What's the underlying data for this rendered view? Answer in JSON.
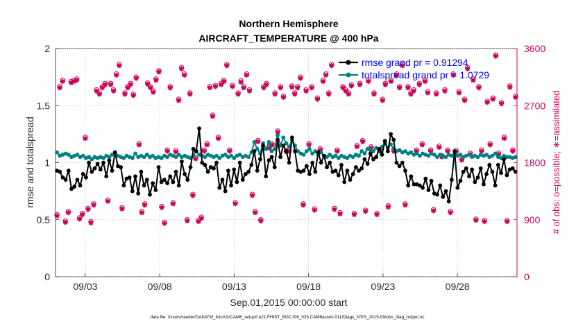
{
  "chart_data": {
    "type": "line",
    "title": "Northern Hemisphere",
    "subtitle": "AIRCRAFT_TEMPERATURE @ 400 hPa",
    "xlabel": "Sep.01,2015 00:00:00 start",
    "ylabel_left": "rmse and totalspread",
    "ylabel_right": "# of obs: o=possible; ∗=assimilated",
    "footer": "data file: /Users/raeder/DAI/ATM_forcXX/CAM6_setup/f.e21.FHIST_BGC.f09_025.CAM6assim.011/Diags_NTrS_2015-09/obs_diag_output.nc",
    "x_range_days": [
      0,
      31
    ],
    "ylim_left": [
      0,
      2
    ],
    "ylim_right": [
      0,
      3600
    ],
    "left_ticks": [
      "0",
      "0.5",
      "1",
      "1.5",
      "2"
    ],
    "right_ticks": [
      "0",
      "900",
      "1800",
      "2700",
      "3600"
    ],
    "x_ticks": [
      {
        "day": 2,
        "label": "09/03"
      },
      {
        "day": 7,
        "label": "09/08"
      },
      {
        "day": 12,
        "label": "09/13"
      },
      {
        "day": 17,
        "label": "09/18"
      },
      {
        "day": 22,
        "label": "09/23"
      },
      {
        "day": 27,
        "label": "09/28"
      }
    ],
    "legend": {
      "placement": "top-right",
      "entries": [
        {
          "label": "rmse grand pr = 0.91294",
          "color": "#000000"
        },
        {
          "label": "totalspread grand pr = 1.0729",
          "color": "#008080"
        }
      ]
    },
    "series": [
      {
        "name": "rmse",
        "color": "#000000",
        "axis": "left",
        "values": [
          0.93,
          0.92,
          0.87,
          0.85,
          0.93,
          0.77,
          0.79,
          0.85,
          0.8,
          0.9,
          0.87,
          1.0,
          0.92,
          0.95,
          0.99,
          0.94,
          1.0,
          0.88,
          1.02,
          0.93,
          1.09,
          0.97,
          0.96,
          0.8,
          0.86,
          0.87,
          0.75,
          0.88,
          0.73,
          0.92,
          0.8,
          0.85,
          0.72,
          0.82,
          0.76,
          0.96,
          0.83,
          0.85,
          0.82,
          0.88,
          0.83,
          0.92,
          0.8,
          1.01,
          0.9,
          0.85,
          0.96,
          1.12,
          1.1,
          1.3,
          1.0,
          0.98,
          0.92,
          0.96,
          0.95,
          1.0,
          0.78,
          0.85,
          0.75,
          0.93,
          0.8,
          0.94,
          0.83,
          1.0,
          0.85,
          0.9,
          0.92,
          0.98,
          1.1,
          0.93,
          1.03,
          1.15,
          0.88,
          1.02,
          1.05,
          0.96,
          1.2,
          1.05,
          1.15,
          1.1,
          1.0,
          1.22,
          1.1,
          0.93,
          0.92,
          0.93,
          0.97,
          0.9,
          1.0,
          0.92,
          1.09,
          1.0,
          1.06,
          0.96,
          1.0,
          0.92,
          0.93,
          0.89,
          0.98,
          0.83,
          0.93,
          0.85,
          0.9,
          0.96,
          0.93,
          0.95,
          1.03,
          0.99,
          1.08,
          1.03,
          1.05,
          1.12,
          1.07,
          1.19,
          1.1,
          1.25,
          1.2,
          1.0,
          0.97,
          1.0,
          0.93,
          0.8,
          0.88,
          0.81,
          0.81,
          0.8,
          0.78,
          0.86,
          0.76,
          0.84,
          0.73,
          0.72,
          0.8,
          0.7,
          0.75,
          0.66,
          0.85,
          1.1,
          0.78,
          0.84,
          0.92,
          0.95,
          0.88,
          0.94,
          0.83,
          0.87,
          0.95,
          0.81,
          0.9,
          0.98,
          0.92,
          0.8,
          0.98,
          0.91,
          1.03,
          0.89,
          0.94,
          0.95,
          0.92
        ]
      },
      {
        "name": "totalspread",
        "color": "#008080",
        "axis": "left",
        "values": [
          1.09,
          1.06,
          1.07,
          1.08,
          1.07,
          1.05,
          1.06,
          1.07,
          1.05,
          1.06,
          1.04,
          1.05,
          1.03,
          1.05,
          1.04,
          1.05,
          1.04,
          1.06,
          1.05,
          1.07,
          1.08,
          1.06,
          1.05,
          1.04,
          1.06,
          1.05,
          1.04,
          1.08,
          1.05,
          1.06,
          1.05,
          1.07,
          1.05,
          1.06,
          1.04,
          1.05,
          1.04,
          1.06,
          1.05,
          1.07,
          1.06,
          1.05,
          1.07,
          1.05,
          1.06,
          1.05,
          1.04,
          1.06,
          1.1,
          1.07,
          1.06,
          1.05,
          1.07,
          1.06,
          1.05,
          1.06,
          1.04,
          1.06,
          1.07,
          1.05,
          1.06,
          1.04,
          1.06,
          1.07,
          1.05,
          1.06,
          1.05,
          1.09,
          1.18,
          1.12,
          1.08,
          1.17,
          1.12,
          1.18,
          1.1,
          1.12,
          1.24,
          1.15,
          1.22,
          1.17,
          1.14,
          1.2,
          1.15,
          1.1,
          1.08,
          1.07,
          1.1,
          1.12,
          1.08,
          1.1,
          1.07,
          1.09,
          1.06,
          1.05,
          1.07,
          1.05,
          1.06,
          1.04,
          1.06,
          1.05,
          1.04,
          1.06,
          1.05,
          1.07,
          1.06,
          1.1,
          1.08,
          1.12,
          1.11,
          1.1,
          1.13,
          1.11,
          1.14,
          1.17,
          1.13,
          1.16,
          1.12,
          1.1,
          1.11,
          1.09,
          1.1,
          1.08,
          1.09,
          1.07,
          1.08,
          1.06,
          1.08,
          1.07,
          1.06,
          1.08,
          1.07,
          1.05,
          1.07,
          1.06,
          1.05,
          1.07,
          1.06,
          1.08,
          1.06,
          1.07,
          1.05,
          1.06,
          1.07,
          1.05,
          1.06,
          1.05,
          1.07,
          1.06,
          1.07,
          1.05,
          1.06,
          1.08,
          1.05,
          1.04,
          1.06,
          1.05,
          1.05,
          1.04,
          1.05
        ]
      },
      {
        "name": "nobs_possible",
        "color": "#cc0055",
        "axis": "right",
        "marker": "o",
        "values": [
          980,
          3000,
          3100,
          880,
          1030,
          3080,
          3100,
          3120,
          930,
          1000,
          2200,
          1080,
          870,
          1150,
          2950,
          2900,
          3000,
          3050,
          1210,
          3050,
          2950,
          3200,
          3350,
          1090,
          2900,
          3000,
          3050,
          2880,
          3150,
          2100,
          1030,
          1150,
          3060,
          3000,
          2930,
          3120,
          3250,
          1110,
          860,
          2000,
          3000,
          1170,
          1990,
          2800,
          3300,
          3200,
          900,
          2900,
          1300,
          1880,
          890,
          940,
          2000,
          2100,
          3000,
          2550,
          3020,
          2200,
          3050,
          3100,
          3350,
          2000,
          3020,
          1170,
          2900,
          3090,
          3000,
          3200,
          2950,
          1300,
          1030,
          2150,
          900,
          3000,
          3050,
          2050,
          2100,
          2900,
          2300,
          3000,
          2850,
          1990,
          2000,
          3010,
          2900,
          3000,
          3150,
          1150,
          2950,
          2100,
          3000,
          1070,
          2820,
          2020,
          3100,
          3200,
          2900,
          3350,
          1080,
          2000,
          1010,
          3000,
          2950,
          2900,
          3030,
          1000,
          2070,
          3050,
          2150,
          1050,
          3100,
          2050,
          2900,
          1000,
          2000,
          2800,
          3050,
          1120,
          3100,
          2000,
          3200,
          3000,
          3350,
          1150,
          3000,
          2900,
          2950,
          2000,
          3050,
          2100,
          3100,
          2920,
          2000,
          1060,
          2900,
          2060,
          1910,
          2950,
          2000,
          1030,
          3200,
          1990,
          2920,
          1860,
          2800,
          3300,
          1950,
          3120,
          910,
          3000,
          2000,
          890,
          2770,
          2100,
          2820,
          3500,
          1950,
          2750,
          2200,
          890,
          3010,
          2000,
          2850
        ]
      },
      {
        "name": "nobs_assimilated",
        "color": "#cc0055",
        "axis": "right",
        "marker": "*",
        "values": [
          960,
          2980,
          3080,
          860,
          1010,
          3060,
          3080,
          3100,
          910,
          980,
          2180,
          1060,
          850,
          1130,
          2930,
          2880,
          2980,
          3030,
          1190,
          3030,
          2930,
          3180,
          3330,
          1070,
          2880,
          2980,
          3030,
          2860,
          3130,
          2080,
          1010,
          1130,
          3040,
          2980,
          2910,
          3100,
          3230,
          1090,
          840,
          1980,
          2980,
          1150,
          1970,
          2780,
          3280,
          3180,
          880,
          2880,
          1280,
          1860,
          870,
          920,
          1980,
          2080,
          2980,
          2530,
          3000,
          2180,
          3030,
          3080,
          3330,
          1980,
          3000,
          1150,
          2880,
          3070,
          2980,
          3180,
          2930,
          1280,
          1010,
          2130,
          880,
          2980,
          3030,
          2030,
          2080,
          2880,
          2280,
          2980,
          2830,
          1970,
          1980,
          2990,
          2880,
          2980,
          3130,
          1130,
          2930,
          2080,
          2980,
          1050,
          2800,
          2000,
          3080,
          3180,
          2880,
          3330,
          1060,
          1980,
          990,
          2980,
          2930,
          2880,
          3010,
          980,
          2050,
          3030,
          2130,
          1030,
          3080,
          2030,
          2880,
          980,
          1980,
          2780,
          3030,
          1100,
          3080,
          1980,
          3180,
          2980,
          3330,
          1130,
          2980,
          2880,
          2930,
          1980,
          3030,
          2080,
          3080,
          2900,
          1980,
          1040,
          2880,
          2040,
          1890,
          2930,
          1980,
          1010,
          3180,
          1970,
          2900,
          1840,
          2780,
          3280,
          1930,
          3100,
          890,
          2980,
          1980,
          870,
          2750,
          2080,
          2800,
          3480,
          1930,
          2730,
          2180,
          870,
          2990,
          1980,
          2830
        ]
      }
    ]
  }
}
